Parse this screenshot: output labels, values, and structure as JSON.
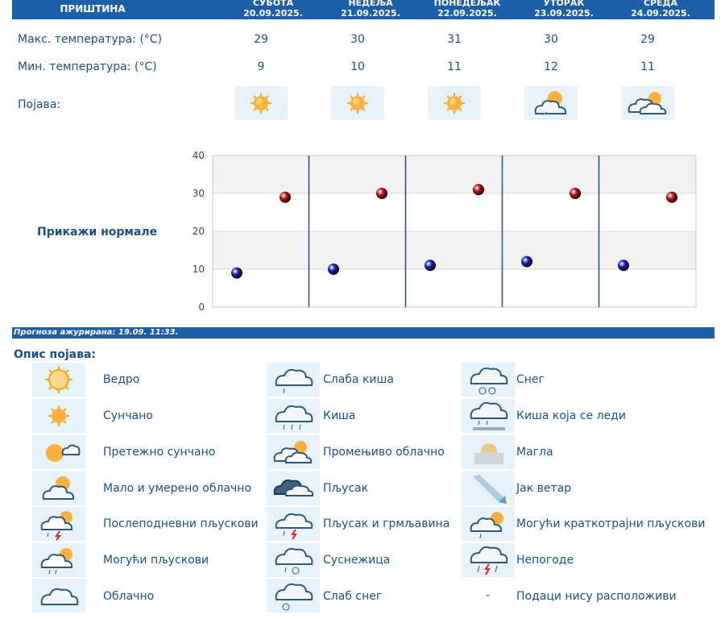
{
  "header": {
    "city": "ПРИШТИНА",
    "days": [
      {
        "name": "СУБОТА",
        "date": "20.09.2025."
      },
      {
        "name": "НЕДЕЉА",
        "date": "21.09.2025."
      },
      {
        "name": "ПОНЕДЕЉАК",
        "date": "22.09.2025."
      },
      {
        "name": "УТОРАК",
        "date": "23.09.2025."
      },
      {
        "name": "СРЕДА",
        "date": "24.09.2025."
      }
    ]
  },
  "rows": {
    "max_label": "Макс. температура: (°C)",
    "min_label": "Мин. температура: (°C)",
    "phen_label": "Појава:",
    "max": [
      "29",
      "30",
      "31",
      "30",
      "29"
    ],
    "min": [
      "9",
      "10",
      "11",
      "12",
      "11"
    ],
    "phenomena_icons": [
      "sunny-icon",
      "sunny-icon",
      "sunny-icon",
      "partly-cloudy-icon",
      "variable-cloudy-icon"
    ]
  },
  "normals_label": "Прикажи нормале",
  "chart_data": {
    "type": "scatter",
    "title": "",
    "ylim": [
      0,
      40
    ],
    "yticks": [
      "0",
      "10",
      "20",
      "30",
      "40"
    ],
    "categories": [
      "20.09.2025.",
      "21.09.2025.",
      "22.09.2025.",
      "23.09.2025.",
      "24.09.2025."
    ],
    "series": [
      {
        "name": "",
        "values": [
          29,
          30,
          31,
          30,
          29
        ],
        "color": "#c01010"
      },
      {
        "name": "",
        "values": [
          9,
          10,
          11,
          12,
          11
        ],
        "color": "#1020c0"
      }
    ],
    "grid": true,
    "band_colors": [
      "#ffffff",
      "#f2f2f2"
    ],
    "divider_color": "#1d4f8c"
  },
  "updated_text": "Прогноза ажурирана:  19.09.  11:33.",
  "legend": {
    "title": "Опис појава:",
    "columns": [
      [
        {
          "icon": "clear-icon",
          "label": "Ведро"
        },
        {
          "icon": "sunny-icon",
          "label": "Сунчано"
        },
        {
          "icon": "mostly-sunny-icon",
          "label": "Претежно сунчано"
        },
        {
          "icon": "partly-cloudy-icon",
          "label": "Мало и умерено облачно"
        },
        {
          "icon": "afternoon-showers-icon",
          "label": "Послеподневни пљускови"
        },
        {
          "icon": "possible-showers-icon",
          "label": "Могући пљускови"
        },
        {
          "icon": "cloudy-icon",
          "label": "Облачно"
        }
      ],
      [
        {
          "icon": "light-rain-icon",
          "label": "Слаба киша"
        },
        {
          "icon": "rain-icon",
          "label": "Киша"
        },
        {
          "icon": "variable-cloudy-icon",
          "label": "Промењиво облачно"
        },
        {
          "icon": "shower-icon",
          "label": "Пљусак"
        },
        {
          "icon": "thunder-shower-icon",
          "label": "Пљусак и грмљавина"
        },
        {
          "icon": "sleet-icon",
          "label": "Суснежица"
        },
        {
          "icon": "light-snow-icon",
          "label": "Слаб снег"
        }
      ],
      [
        {
          "icon": "snow-icon",
          "label": "Снег"
        },
        {
          "icon": "freezing-rain-icon",
          "label": "Киша која се леди"
        },
        {
          "icon": "fog-icon",
          "label": "Магла"
        },
        {
          "icon": "strong-wind-icon",
          "label": "Јак ветар"
        },
        {
          "icon": "brief-showers-icon",
          "label": "Могући краткотрајни пљускови"
        },
        {
          "icon": "storm-icon",
          "label": "Непогоде"
        },
        {
          "icon": "",
          "label": "Подаци нису расположиви",
          "dash": "-"
        }
      ]
    ]
  }
}
